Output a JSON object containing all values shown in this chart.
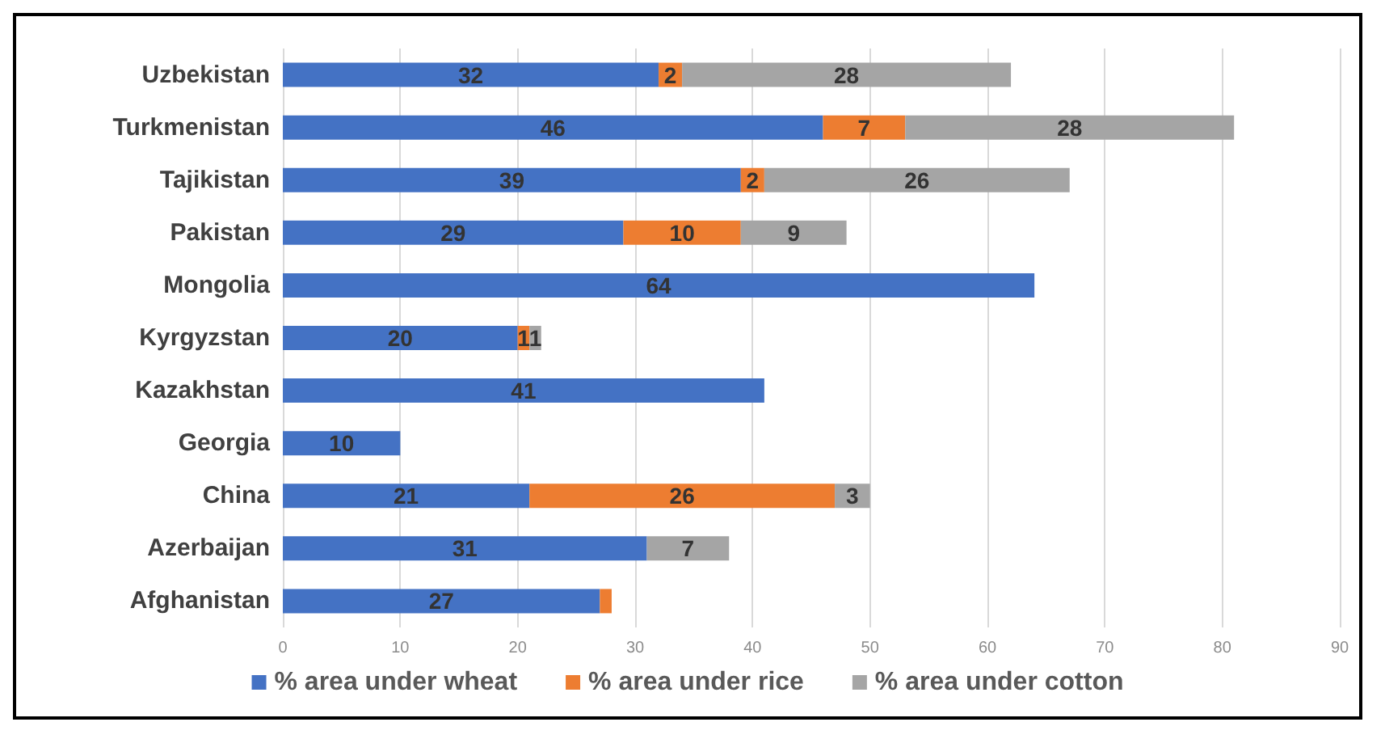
{
  "chart_data": {
    "type": "bar",
    "orientation": "horizontal",
    "stacked": true,
    "categories": [
      "Uzbekistan",
      "Turkmenistan",
      "Tajikistan",
      "Pakistan",
      "Mongolia",
      "Kyrgyzstan",
      "Kazakhstan",
      "Georgia",
      "China",
      "Azerbaijan",
      "Afghanistan"
    ],
    "series": [
      {
        "name": "% area under wheat",
        "color": "#4472c4",
        "values": [
          32,
          46,
          39,
          29,
          64,
          20,
          41,
          10,
          21,
          31,
          27
        ],
        "value_labels": [
          "32",
          "46",
          "39",
          "29",
          "64",
          "20",
          "41",
          "10",
          "21",
          "31",
          "27"
        ]
      },
      {
        "name": "% area under rice",
        "color": "#ed7d31",
        "values": [
          2,
          7,
          2,
          10,
          null,
          1,
          null,
          null,
          26,
          null,
          1
        ],
        "value_labels": [
          "2",
          "7",
          "2",
          "10",
          null,
          "1",
          null,
          null,
          "26",
          null,
          null
        ]
      },
      {
        "name": "% area under cotton",
        "color": "#a5a5a5",
        "values": [
          28,
          28,
          26,
          9,
          null,
          1,
          null,
          null,
          3,
          7,
          null
        ],
        "value_labels": [
          "28",
          "28",
          "26",
          "9",
          null,
          "1",
          null,
          null,
          "3",
          "7",
          null
        ]
      }
    ],
    "xlim": [
      0,
      90
    ],
    "xticks": [
      0,
      10,
      20,
      30,
      40,
      50,
      60,
      70,
      80,
      90
    ],
    "grid": "x",
    "legend": "bottom"
  }
}
